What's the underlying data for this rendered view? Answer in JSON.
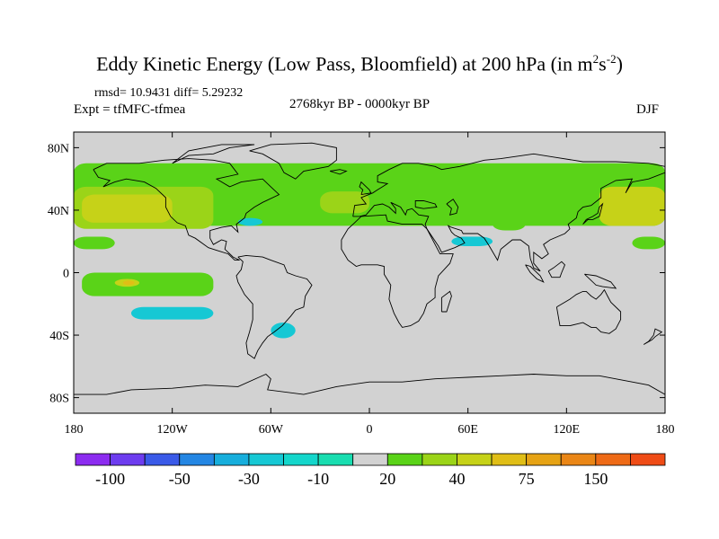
{
  "title": {
    "main": "Eddy Kinetic Energy (Low Pass, Bloomfield) at 200 hPa (in m",
    "unit_m_exp": "2",
    "unit_s": "s",
    "unit_s_exp": "-2",
    "close": ")"
  },
  "subtitle": {
    "stats": "rmsd= 10.9431 diff= 5.29232",
    "experiment": "Expt = tfMFC-tfmea",
    "period": "2768kyr BP - 0000kyr BP",
    "season": "DJF"
  },
  "map": {
    "projection": "cylindrical-equidistant",
    "lon_range": [
      -180,
      180
    ],
    "lat_range": [
      -90,
      90
    ],
    "lat_ticks": [
      {
        "lat": 80,
        "label": "80N"
      },
      {
        "lat": 40,
        "label": "40N"
      },
      {
        "lat": 0,
        "label": "0"
      },
      {
        "lat": -40,
        "label": "40S"
      },
      {
        "lat": -80,
        "label": "80S"
      }
    ],
    "lon_ticks": [
      {
        "lon": -180,
        "label": "180"
      },
      {
        "lon": -120,
        "label": "120W"
      },
      {
        "lon": -60,
        "label": "60W"
      },
      {
        "lon": 0,
        "label": "0"
      },
      {
        "lon": 60,
        "label": "60E"
      },
      {
        "lon": 120,
        "label": "120E"
      },
      {
        "lon": 180,
        "label": "180"
      }
    ],
    "background_color": "#d2d2d2"
  },
  "colorbar": {
    "colors": [
      "#8c2cf0",
      "#6d3cef",
      "#3a5ae8",
      "#2486e3",
      "#17aedc",
      "#16c8d4",
      "#14d6cb",
      "#19ddb0",
      "#d2d2d2",
      "#5ad318",
      "#9bd418",
      "#c6d218",
      "#e0be16",
      "#e6a314",
      "#ea8616",
      "#ee6a16",
      "#ef4c16"
    ],
    "labels": [
      {
        "boundary": 1,
        "text": "-100"
      },
      {
        "boundary": 3,
        "text": "-50"
      },
      {
        "boundary": 5,
        "text": "-30"
      },
      {
        "boundary": 7,
        "text": "-10"
      },
      {
        "boundary": 9,
        "text": "20"
      },
      {
        "boundary": 11,
        "text": "40"
      },
      {
        "boundary": 13,
        "text": "75"
      },
      {
        "boundary": 15,
        "text": "150"
      }
    ]
  },
  "anomaly_regions": [
    {
      "level": "positive-low",
      "color": "#5ad318",
      "lon_range": [
        -180,
        180
      ],
      "lat_range": [
        30,
        70
      ],
      "desc": "NH storm-track band"
    },
    {
      "level": "positive-mid",
      "color": "#9bd418",
      "lon_range": [
        -180,
        -95
      ],
      "lat_range": [
        28,
        55
      ]
    },
    {
      "level": "positive-high",
      "color": "#c6d218",
      "lon_range": [
        -175,
        -120
      ],
      "lat_range": [
        32,
        50
      ]
    },
    {
      "level": "positive-mid",
      "color": "#9bd418",
      "lon_range": [
        -30,
        0
      ],
      "lat_range": [
        38,
        52
      ]
    },
    {
      "level": "positive-high",
      "color": "#c6d218",
      "lon_range": [
        140,
        180
      ],
      "lat_range": [
        30,
        55
      ]
    },
    {
      "level": "positive-low",
      "color": "#5ad318",
      "lon_range": [
        -175,
        -95
      ],
      "lat_range": [
        -15,
        0
      ]
    },
    {
      "level": "positive-high",
      "color": "#c6d218",
      "lon_range": [
        -155,
        -140
      ],
      "lat_range": [
        -9,
        -4
      ]
    },
    {
      "level": "positive-max",
      "color": "#e0be16",
      "lon_range": [
        -150,
        -143
      ],
      "lat_range": [
        -8,
        -5
      ]
    },
    {
      "level": "negative-low",
      "color": "#16c8d4",
      "lon_range": [
        -145,
        -95
      ],
      "lat_range": [
        -30,
        -22
      ]
    },
    {
      "level": "negative-low",
      "color": "#16c8d4",
      "lon_range": [
        -60,
        -45
      ],
      "lat_range": [
        -42,
        -32
      ]
    },
    {
      "level": "negative-low",
      "color": "#16c8d4",
      "lon_range": [
        -80,
        -65
      ],
      "lat_range": [
        30,
        35
      ]
    },
    {
      "level": "negative-low",
      "color": "#16c8d4",
      "lon_range": [
        50,
        75
      ],
      "lat_range": [
        17,
        23
      ]
    },
    {
      "level": "positive-low",
      "color": "#5ad318",
      "lon_range": [
        75,
        95
      ],
      "lat_range": [
        27,
        35
      ]
    },
    {
      "level": "positive-low",
      "color": "#5ad318",
      "lon_range": [
        160,
        180
      ],
      "lat_range": [
        15,
        23
      ]
    },
    {
      "level": "positive-low",
      "color": "#5ad318",
      "lon_range": [
        -180,
        -155
      ],
      "lat_range": [
        15,
        23
      ]
    }
  ]
}
